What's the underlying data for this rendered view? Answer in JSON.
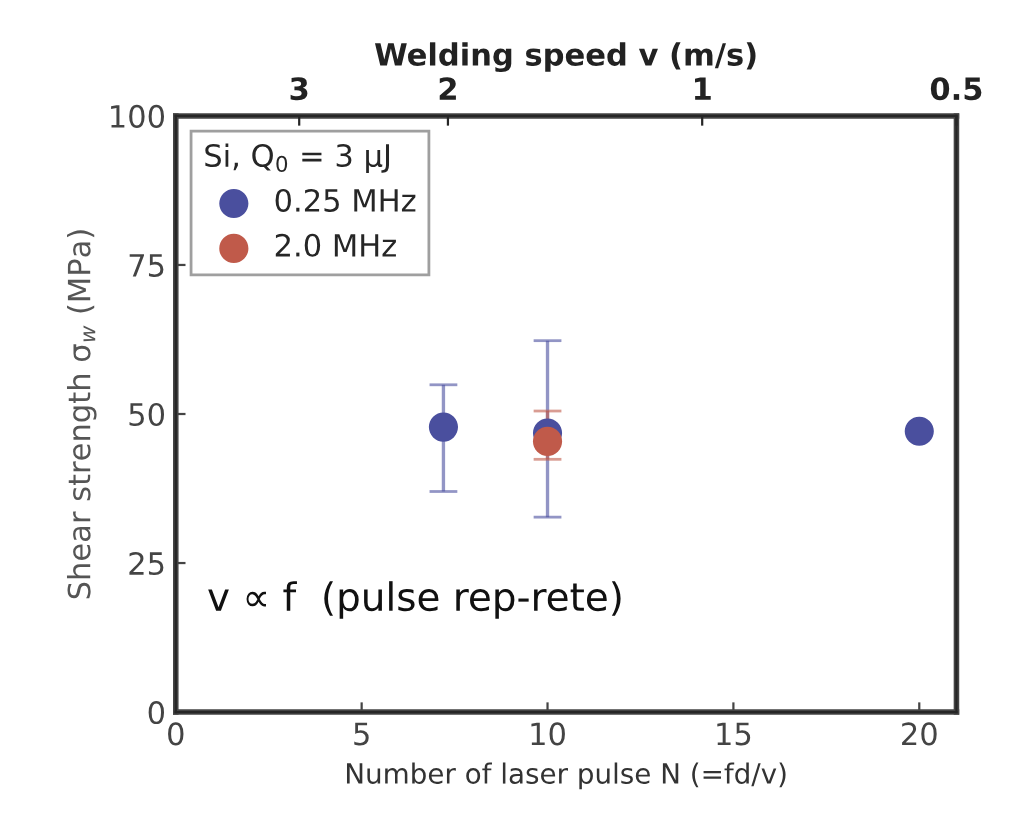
{
  "chart_data": {
    "type": "scatter",
    "xlabel": "Number of laser pulse N (=fd/v)",
    "ylabel": "Shear strength σ$_{w}$ (MPa)",
    "x2label": "Welding speed v (m/s)",
    "legend_title": "Si, Q$_{0}$ = 3 μJ",
    "legend": "top left",
    "marker": "circle",
    "grid": false,
    "xlim": [
      0,
      21
    ],
    "xticks": [
      0,
      5,
      10,
      15,
      20
    ],
    "ylim": [
      0,
      100
    ],
    "yticks": [
      0,
      25,
      50,
      75,
      100
    ],
    "log": "x2",
    "x2lim": [
      4.2,
      0.5
    ],
    "x2ticks": [
      3,
      2,
      1,
      0.5
    ],
    "annotations": [
      {
        "text": "v ∝ f  (pulse rep-rete)"
      }
    ],
    "series": [
      {
        "name": "0.25 MHz",
        "color": "#4a4f9e",
        "x": [
          7.2,
          10,
          20
        ],
        "values": [
          47.8,
          46.8,
          47.1
        ],
        "errors": [
          [
            37.0,
            54.9
          ],
          [
            32.7,
            62.3
          ],
          null
        ]
      },
      {
        "name": "2.0 MHz",
        "color": "#c05a4a",
        "x": [
          10
        ],
        "values": [
          45.4
        ],
        "errors": [
          [
            42.4,
            50.5
          ]
        ]
      }
    ]
  }
}
